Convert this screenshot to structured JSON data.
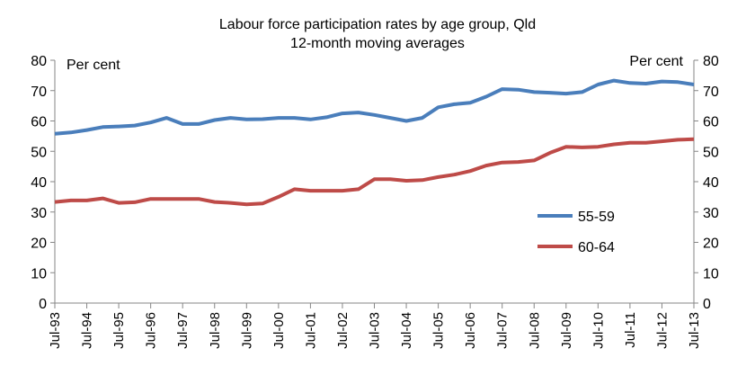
{
  "chart_data": {
    "type": "line",
    "title": "Labour force participation rates by age group, Qld",
    "subtitle": "12-month moving averages",
    "ylabel_left": "Per cent",
    "ylabel_right": "Per cent",
    "ylim": [
      0,
      80
    ],
    "yticks": [
      0,
      10,
      20,
      30,
      40,
      50,
      60,
      70,
      80
    ],
    "xticks": [
      "Jul-93",
      "Jul-94",
      "Jul-95",
      "Jul-96",
      "Jul-97",
      "Jul-98",
      "Jul-99",
      "Jul-00",
      "Jul-01",
      "Jul-02",
      "Jul-03",
      "Jul-04",
      "Jul-05",
      "Jul-06",
      "Jul-07",
      "Jul-08",
      "Jul-09",
      "Jul-10",
      "Jul-11",
      "Jul-12",
      "Jul-13"
    ],
    "x_years": [
      1993,
      1993.5,
      1994,
      1994.5,
      1995,
      1995.5,
      1996,
      1996.5,
      1997,
      1997.5,
      1998,
      1998.5,
      1999,
      1999.5,
      2000,
      2000.5,
      2001,
      2001.5,
      2002,
      2002.5,
      2003,
      2003.5,
      2004,
      2004.5,
      2005,
      2005.5,
      2006,
      2006.5,
      2007,
      2007.5,
      2008,
      2008.5,
      2009,
      2009.5,
      2010,
      2010.5,
      2011,
      2011.5,
      2012,
      2012.5,
      2013
    ],
    "grid": false,
    "legend_position": "center-right",
    "series": [
      {
        "name": "55-59",
        "color": "#4a7ebb",
        "values": [
          55.8,
          56.2,
          57.0,
          58.0,
          58.2,
          58.5,
          59.5,
          61.0,
          59.0,
          59.0,
          60.3,
          61.0,
          60.5,
          60.6,
          61.0,
          61.0,
          60.5,
          61.2,
          62.5,
          62.8,
          62.0,
          61.0,
          60.0,
          61.0,
          64.5,
          65.5,
          66.0,
          68.0,
          70.5,
          70.3,
          69.5,
          69.3,
          69.0,
          69.5,
          72.0,
          73.3,
          72.5,
          72.3,
          73.0,
          72.8,
          72.0
        ]
      },
      {
        "name": "60-64",
        "color": "#be4b48",
        "values": [
          33.3,
          33.8,
          33.8,
          34.5,
          33.0,
          33.2,
          34.3,
          34.3,
          34.3,
          34.3,
          33.3,
          33.0,
          32.5,
          32.8,
          35.0,
          37.5,
          37.0,
          37.0,
          37.0,
          37.5,
          40.8,
          40.8,
          40.3,
          40.5,
          41.5,
          42.3,
          43.5,
          45.3,
          46.3,
          46.5,
          47.0,
          49.5,
          51.5,
          51.3,
          51.5,
          52.3,
          52.8,
          52.8,
          53.3,
          53.8,
          54.0
        ]
      }
    ]
  }
}
